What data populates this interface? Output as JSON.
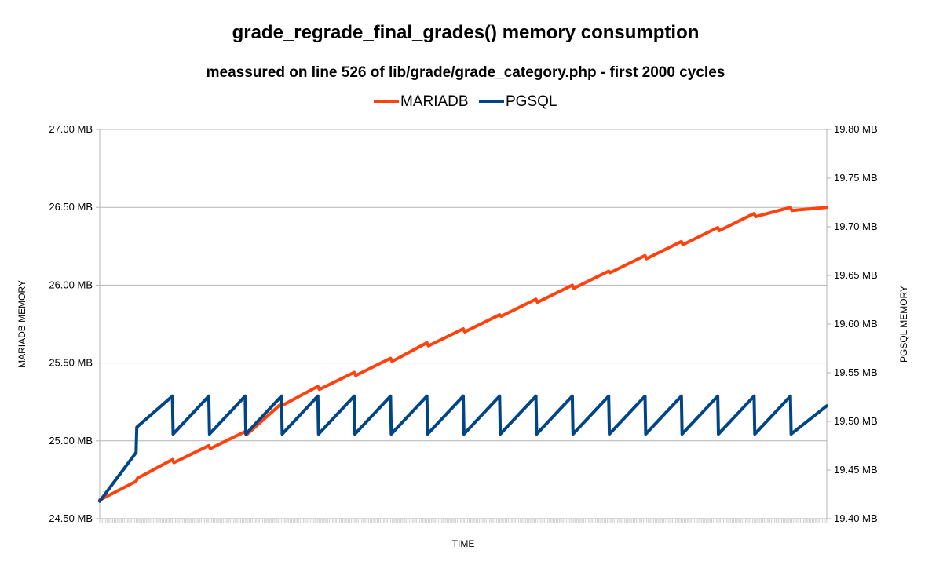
{
  "chart_data": {
    "type": "line",
    "title": "grade_regrade_final_grades() memory consumption",
    "subtitle": "meassured on line 526 of lib/grade/grade_category.php - first 2000 cycles",
    "xlabel": "TIME",
    "ylabel_left": "MARIADB MEMORY",
    "ylabel_right": "PGSQL MEMORY",
    "legend_position": "top-center",
    "grid": true,
    "xlim": [
      0,
      2000
    ],
    "ylim_left": [
      24.5,
      27.0
    ],
    "ylim_right": [
      19.4,
      19.8
    ],
    "yticks_left": [
      "24.50 MB",
      "25.00 MB",
      "25.50 MB",
      "26.00 MB",
      "26.50 MB",
      "27.00 MB"
    ],
    "yticks_right": [
      "19.40 MB",
      "19.45 MB",
      "19.50 MB",
      "19.55 MB",
      "19.60 MB",
      "19.65 MB",
      "19.70 MB",
      "19.75 MB",
      "19.80 MB"
    ],
    "series": [
      {
        "name": "MARIADB",
        "axis": "left",
        "color": "#ff420e",
        "x": [
          0,
          100,
          104,
          200,
          204,
          300,
          304,
          400,
          404,
          500,
          504,
          600,
          604,
          700,
          704,
          800,
          804,
          900,
          904,
          1000,
          1004,
          1100,
          1104,
          1200,
          1204,
          1300,
          1304,
          1400,
          1404,
          1500,
          1504,
          1600,
          1604,
          1700,
          1704,
          1800,
          1804,
          1900,
          1904,
          2000
        ],
        "y": [
          24.62,
          24.74,
          24.76,
          24.88,
          24.86,
          24.97,
          24.95,
          25.06,
          25.04,
          25.24,
          25.23,
          25.35,
          25.33,
          25.44,
          25.42,
          25.53,
          25.51,
          25.63,
          25.61,
          25.72,
          25.7,
          25.81,
          25.8,
          25.91,
          25.89,
          26.0,
          25.98,
          26.09,
          26.08,
          26.19,
          26.17,
          26.28,
          26.26,
          26.37,
          26.35,
          26.46,
          26.44,
          26.5,
          26.48,
          26.5
        ]
      },
      {
        "name": "PGSQL",
        "axis": "right",
        "color": "#004586",
        "x": [
          0,
          100,
          102,
          200,
          202,
          300,
          302,
          400,
          402,
          500,
          502,
          600,
          602,
          700,
          702,
          800,
          802,
          900,
          902,
          1000,
          1002,
          1100,
          1102,
          1200,
          1202,
          1300,
          1302,
          1400,
          1402,
          1500,
          1502,
          1600,
          1602,
          1700,
          1702,
          1800,
          1802,
          1900,
          1902,
          2000
        ],
        "y": [
          19.418,
          19.468,
          19.494,
          19.526,
          19.487,
          19.526,
          19.487,
          19.526,
          19.487,
          19.526,
          19.487,
          19.526,
          19.487,
          19.526,
          19.487,
          19.526,
          19.487,
          19.526,
          19.487,
          19.526,
          19.487,
          19.526,
          19.487,
          19.526,
          19.487,
          19.526,
          19.487,
          19.526,
          19.487,
          19.526,
          19.487,
          19.526,
          19.487,
          19.526,
          19.487,
          19.526,
          19.487,
          19.526,
          19.487,
          19.516
        ]
      }
    ]
  }
}
